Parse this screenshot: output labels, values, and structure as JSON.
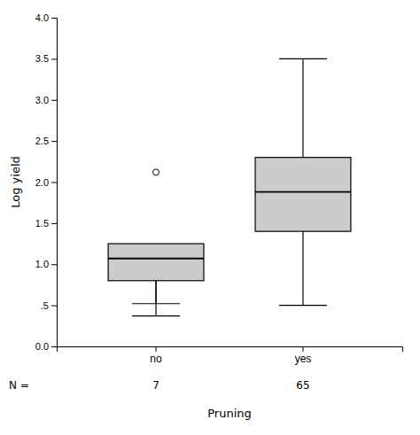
{
  "chart_data": {
    "type": "box",
    "xlabel": "Pruning",
    "ylabel": "Log yield",
    "categories": [
      "no",
      "yes"
    ],
    "boxes": [
      {
        "whislo": 0.37,
        "q1": 0.8,
        "med": 1.07,
        "q3": 1.25,
        "whishi": 0.52,
        "fliers": [
          2.12
        ]
      },
      {
        "whislo": 0.5,
        "q1": 1.4,
        "med": 1.88,
        "q3": 2.3,
        "whishi": 3.5,
        "fliers": []
      }
    ],
    "n_label": "N =",
    "n": [
      7,
      65
    ],
    "color": "#cccccc",
    "ylim": [
      0.0,
      4.0
    ],
    "yticks": [
      {
        "value": 0.0,
        "label": "0.0"
      },
      {
        "value": 0.5,
        "label": ".5"
      },
      {
        "value": 1.0,
        "label": "1.0"
      },
      {
        "value": 1.5,
        "label": "1.5"
      },
      {
        "value": 2.0,
        "label": "2.0"
      },
      {
        "value": 2.5,
        "label": "2.5"
      },
      {
        "value": 3.0,
        "label": "3.0"
      },
      {
        "value": 3.5,
        "label": "3.5"
      },
      {
        "value": 4.0,
        "label": "4.0"
      }
    ],
    "grid": false
  }
}
